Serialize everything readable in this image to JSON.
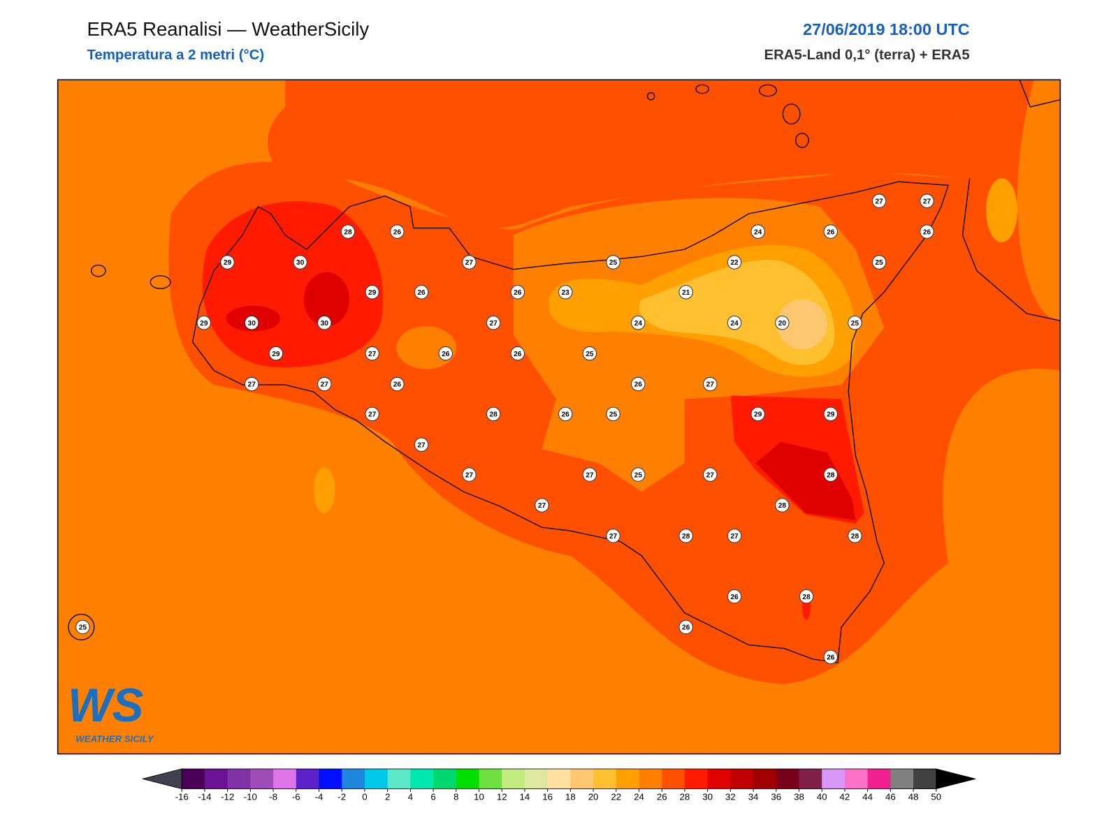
{
  "header": {
    "title": "ERA5 Reanalisi — WeatherSicily",
    "subtitle": "Temperatura a 2 metri (°C)",
    "datetime": "27/06/2019 18:00 UTC",
    "source": "ERA5-Land 0,1° (terra) + ERA5"
  },
  "stations": [
    28,
    26,
    29,
    30,
    27,
    25,
    24,
    26,
    27,
    27,
    26,
    22,
    25,
    29,
    26,
    26,
    23,
    21,
    29,
    30,
    30,
    27,
    24,
    24,
    20,
    25,
    29,
    27,
    26,
    26,
    25,
    27,
    27,
    26,
    26,
    27,
    27,
    28,
    26,
    25,
    29,
    29,
    27,
    27,
    27,
    25,
    27,
    28,
    27,
    28,
    27,
    28,
    27,
    28,
    26,
    28,
    26,
    26,
    25
  ],
  "colorbar": {
    "ticks": [
      -16,
      -14,
      -12,
      -10,
      -8,
      -6,
      -4,
      -2,
      0,
      2,
      4,
      6,
      8,
      10,
      12,
      14,
      16,
      18,
      20,
      22,
      24,
      26,
      28,
      30,
      32,
      34,
      36,
      38,
      40,
      42,
      44,
      46,
      48,
      50
    ],
    "colors": [
      "#4a0058",
      "#6a1196",
      "#7f33a6",
      "#9e4db8",
      "#df75e8",
      "#5a22c8",
      "#0010ff",
      "#1e88e0",
      "#00c8e8",
      "#5ae8c8",
      "#00e8b0",
      "#00d870",
      "#00e000",
      "#70e040",
      "#c0ec80",
      "#e0e8a0",
      "#ffe0a0",
      "#ffc870",
      "#ffc030",
      "#ffa000",
      "#ff8000",
      "#ff5000",
      "#ff1a00",
      "#e00000",
      "#c00000",
      "#a00000",
      "#780018",
      "#802048",
      "#d898f8",
      "#ff70c8",
      "#f02090",
      "#808080",
      "#404040"
    ],
    "extend_colors": [
      "#404050",
      "#000000"
    ]
  },
  "logo": {
    "mark": "WS",
    "text": "WEATHER SICILY"
  }
}
